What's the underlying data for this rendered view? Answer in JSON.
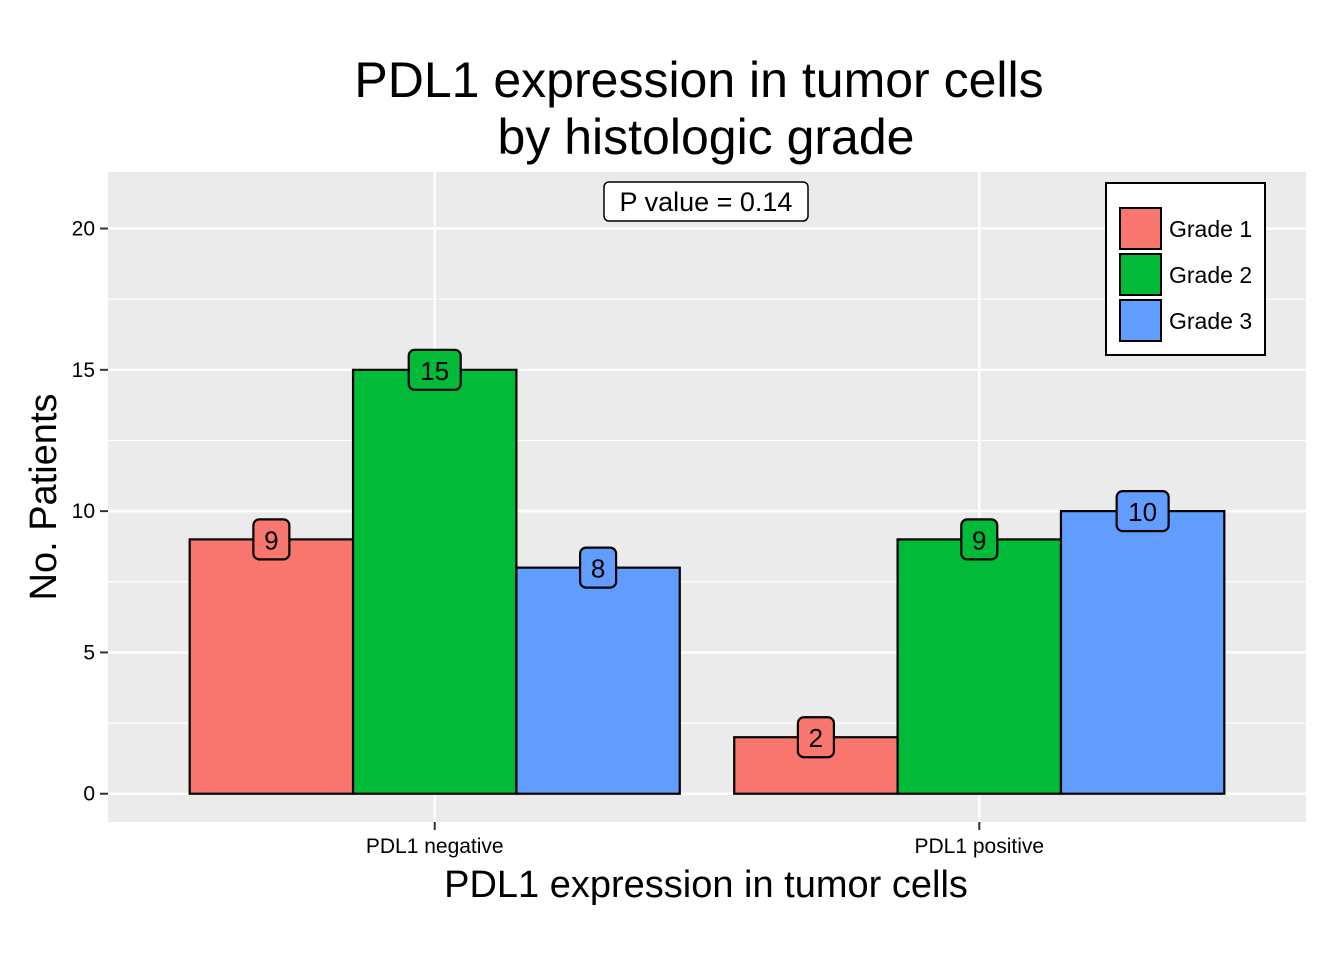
{
  "chart_data": {
    "type": "bar",
    "title": [
      "PDL1 expression in tumor cells",
      "by histologic grade"
    ],
    "xlabel": "PDL1 expression in tumor cells",
    "ylabel": "No. Patients",
    "categories": [
      "PDL1 negative",
      "PDL1 positive"
    ],
    "series": [
      {
        "name": "Grade 1",
        "values": [
          9,
          2
        ],
        "color": "#F8766D"
      },
      {
        "name": "Grade 2",
        "values": [
          15,
          9
        ],
        "color": "#00BA38"
      },
      {
        "name": "Grade 3",
        "values": [
          8,
          10
        ],
        "color": "#619CFF"
      }
    ],
    "ylim": [
      -1,
      22
    ],
    "yticks": [
      0,
      5,
      10,
      15,
      20
    ],
    "annotation": "P value = 0.14",
    "legend_position": "top-right",
    "grid": true,
    "panel_background": "#EBEBEB",
    "grid_color": "#FFFFFF"
  }
}
